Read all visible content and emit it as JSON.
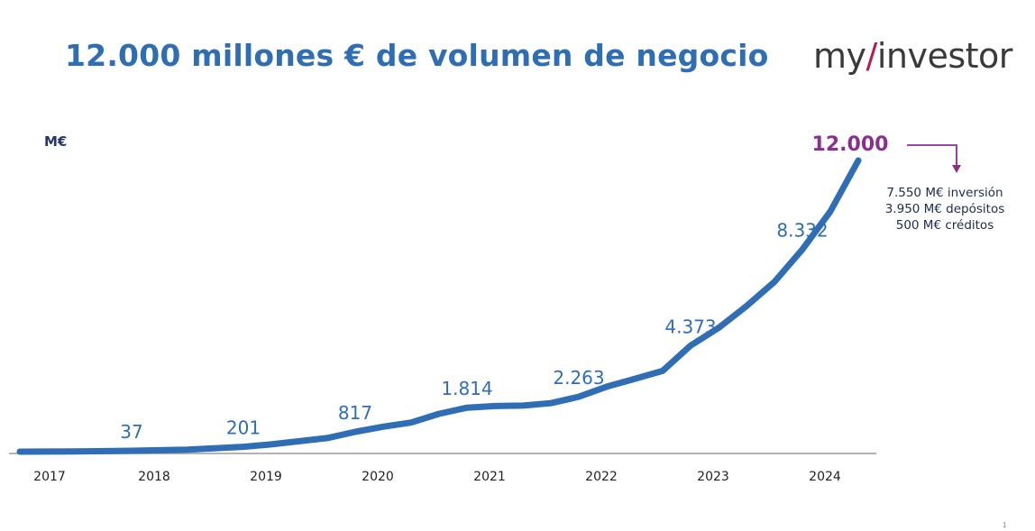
{
  "slide": {
    "title": "12.000 millones € de volumen de negocio",
    "logo": {
      "part1": "my",
      "accent": "/",
      "part2": "investor"
    },
    "unit_label": "M€",
    "breakdown": [
      "7.550 M€ inversión",
      "3.950 M€ depósitos",
      "500 M€ créditos"
    ],
    "page_number": "1"
  },
  "colors": {
    "title": "#2f6db5",
    "line": "#2f6db5",
    "labels": "#2f6db5",
    "highlight": "#8b2f8f",
    "axis": "#9a9a9a",
    "logo_accent": "#c0174f"
  },
  "chart_data": {
    "type": "line",
    "title": "12.000 millones € de volumen de negocio",
    "ylabel": "M€",
    "xlabel": "",
    "x_ticks": [
      "2017",
      "2018",
      "2019",
      "2020",
      "2021",
      "2022",
      "2023",
      "2024"
    ],
    "x": [
      2017.0,
      2017.5,
      2018.0,
      2018.5,
      2019.0,
      2019.25,
      2019.5,
      2019.75,
      2020.0,
      2020.25,
      2020.5,
      2020.75,
      2021.0,
      2021.25,
      2021.5,
      2021.75,
      2022.0,
      2022.25,
      2022.5,
      2022.75,
      2023.0,
      2023.25,
      2023.5,
      2023.75,
      2024.0,
      2024.25,
      2024.5
    ],
    "y": [
      0,
      10,
      37,
      80,
      201,
      300,
      430,
      560,
      817,
      1030,
      1200,
      1560,
      1814,
      1880,
      1900,
      2000,
      2263,
      2680,
      3000,
      3330,
      4373,
      5100,
      6000,
      7000,
      8332,
      9900,
      12000
    ],
    "ylim": [
      0,
      12000
    ],
    "grid": false,
    "legend": "none",
    "series": [
      {
        "values": [
          0,
          10,
          37,
          80,
          201,
          300,
          430,
          560,
          817,
          1030,
          1200,
          1560,
          1814,
          1880,
          1900,
          2000,
          2263,
          2680,
          3000,
          3330,
          4373,
          5100,
          6000,
          7000,
          8332,
          9900,
          12000
        ]
      }
    ],
    "data_labels": [
      {
        "x": 2018.0,
        "y": 37,
        "text": "37"
      },
      {
        "x": 2019.0,
        "y": 201,
        "text": "201"
      },
      {
        "x": 2020.0,
        "y": 817,
        "text": "817"
      },
      {
        "x": 2021.0,
        "y": 1814,
        "text": "1.814"
      },
      {
        "x": 2022.0,
        "y": 2263,
        "text": "2.263"
      },
      {
        "x": 2023.0,
        "y": 4373,
        "text": "4.373"
      },
      {
        "x": 2024.0,
        "y": 8332,
        "text": "8.332"
      },
      {
        "x": 2024.5,
        "y": 12000,
        "text": "12.000",
        "highlight": true
      }
    ]
  }
}
